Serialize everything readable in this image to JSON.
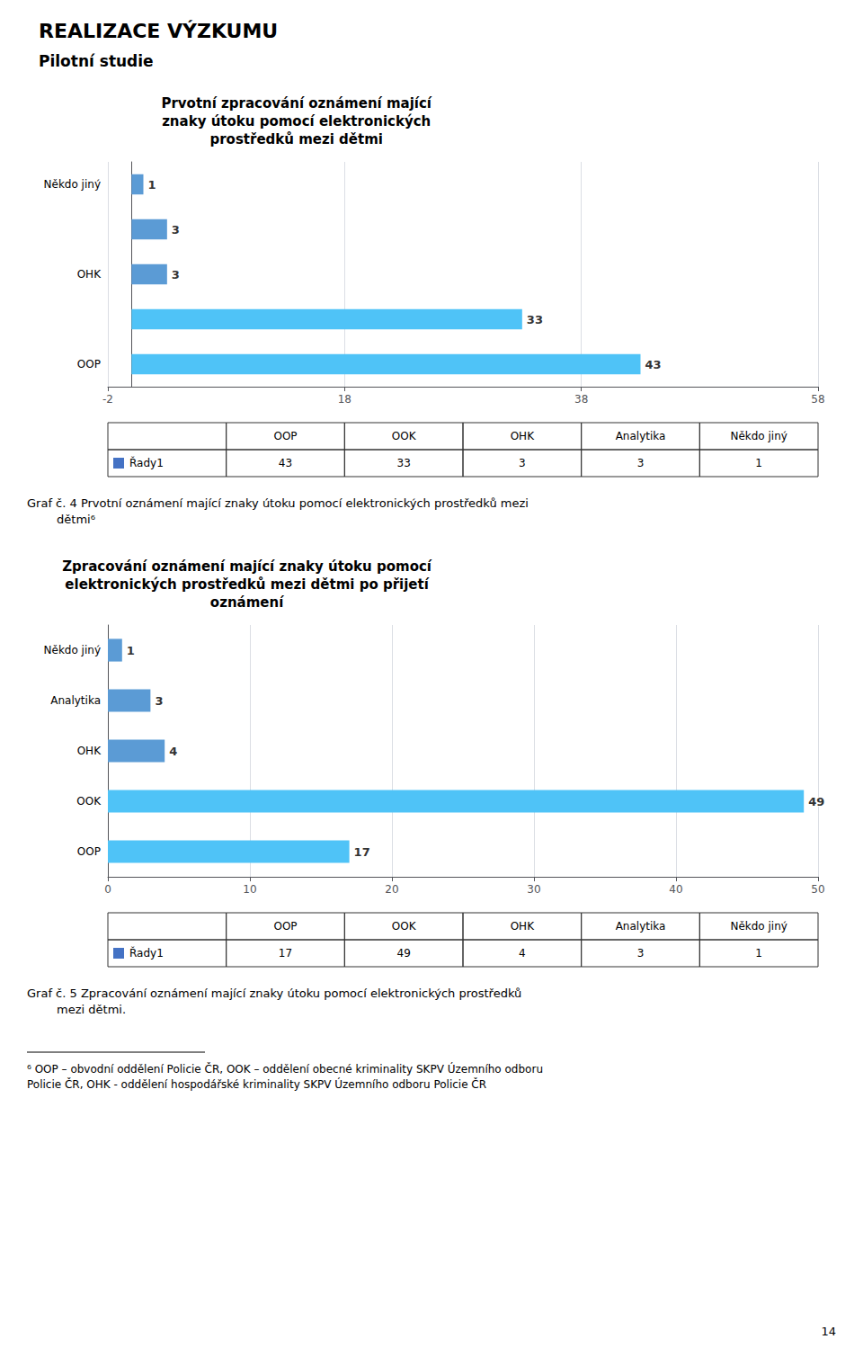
{
  "title": "REALIZACE VÝZKUMU",
  "subtitle": "Pilotní studie",
  "chart_data": [
    {
      "type": "bar",
      "orientation": "horizontal",
      "title": "Prvotní zpracování oznámení mající\nznaky útoku pomocí elektronických\nprostředků mezi dětmi",
      "categories": [
        "Někdo jiný",
        null,
        "OHK",
        null,
        "OOP"
      ],
      "values": [
        1,
        3,
        3,
        33,
        43
      ],
      "colors": [
        "#5B9BD5",
        "#5B9BD5",
        "#5B9BD5",
        "#4FC3F7",
        "#4FC3F7"
      ],
      "xlim": [
        -2,
        58
      ],
      "xticks": [
        -2,
        18,
        38,
        58
      ],
      "grid": true,
      "data_labels": true,
      "table": {
        "columns": [
          "OOP",
          "OOK",
          "OHK",
          "Analytika",
          "Někdo jiný"
        ],
        "rows": [
          {
            "name": "Řady1",
            "color": "#4472C4",
            "values": [
              43,
              33,
              3,
              3,
              1
            ]
          }
        ]
      },
      "caption": "Graf č. 4 Prvotní oznámení mající znaky útoku pomocí elektronických prostředků mezi\n        dětmi⁶"
    },
    {
      "type": "bar",
      "orientation": "horizontal",
      "title": "Zpracování oznámení mající znaky útoku pomocí\nelektronických prostředků mezi dětmi po přijetí\noznámení",
      "categories": [
        "Někdo jiný",
        "Analytika",
        "OHK",
        "OOK",
        "OOP"
      ],
      "values": [
        1,
        3,
        4,
        49,
        17
      ],
      "colors": [
        "#5B9BD5",
        "#5B9BD5",
        "#5B9BD5",
        "#4FC3F7",
        "#4FC3F7"
      ],
      "xlim": [
        0,
        50
      ],
      "xticks": [
        0,
        10,
        20,
        30,
        40,
        50
      ],
      "grid": true,
      "data_labels": true,
      "table": {
        "columns": [
          "OOP",
          "OOK",
          "OHK",
          "Analytika",
          "Někdo jiný"
        ],
        "rows": [
          {
            "name": "Řady1",
            "color": "#4472C4",
            "values": [
              17,
              49,
              4,
              3,
              1
            ]
          }
        ]
      },
      "caption": "Graf č. 5 Zpracování oznámení mající znaky útoku pomocí elektronických prostředků\n        mezi dětmi."
    }
  ],
  "footnote": "⁶ OOP – obvodní oddělení Policie ČR, OOK – oddělení obecné kriminality SKPV Územního odboru\nPolicie ČR, OHK - oddělení hospodářské kriminality SKPV Územního odboru Policie ČR",
  "page_number": "14"
}
